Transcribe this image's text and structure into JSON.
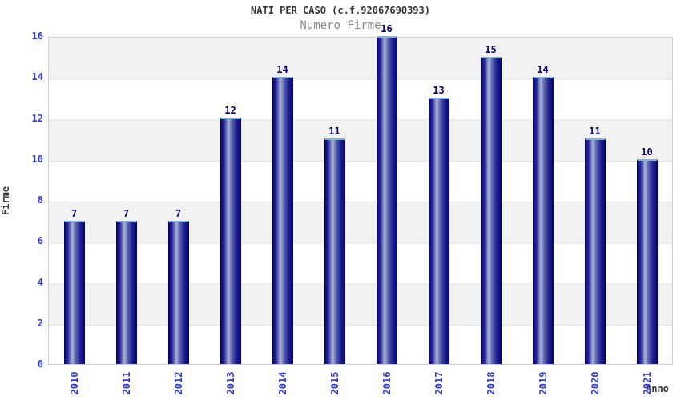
{
  "chart_data": {
    "type": "bar",
    "title": "NATI PER CASO (c.f.92067690393)",
    "subtitle": "Numero Firme",
    "xlabel": "Anno",
    "ylabel": "Firme",
    "categories": [
      "2010",
      "2011",
      "2012",
      "2013",
      "2014",
      "2015",
      "2016",
      "2017",
      "2018",
      "2019",
      "2020",
      "2021"
    ],
    "values": [
      7,
      7,
      7,
      12,
      14,
      11,
      16,
      13,
      15,
      14,
      11,
      10
    ],
    "ylim": [
      0,
      16
    ],
    "yticks": [
      0,
      2,
      4,
      6,
      8,
      10,
      12,
      14,
      16
    ],
    "grid": "horizontal gridlines every 2 units with alternating gray/white bands, gray band at top (16-14)",
    "legend": "none",
    "colors": {
      "bar_edge": "#08087c",
      "bar_dark": "#2a2a96",
      "bar_mid_light": "#aab3d8",
      "bar_cap": "#7fb0e6",
      "tick_label": "#2e3bd6",
      "value_label": "#000066",
      "title": "#333333",
      "subtitle": "#8a8a8a",
      "band_gray": "#f2f2f2",
      "plot_border": "#cfcfcf"
    }
  }
}
